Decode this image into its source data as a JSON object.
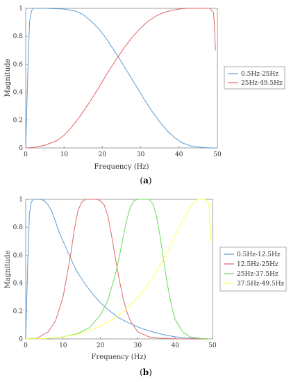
{
  "chart_data": [
    {
      "type": "line",
      "panel": "(a)",
      "caption_open": "(",
      "caption_letter": "a",
      "caption_close": ")",
      "xlabel": "Frequency (Hz)",
      "ylabel": "Magnitude",
      "xlim": [
        0,
        50
      ],
      "ylim": [
        0,
        1
      ],
      "xticks": [
        0,
        10,
        20,
        30,
        40,
        50
      ],
      "yticks": [
        0,
        0.2,
        0.4,
        0.6,
        0.8,
        1
      ],
      "grid": false,
      "legend_position": "right",
      "series": [
        {
          "name": "0.5Hz-25Hz",
          "color": "#5b9bd5",
          "x": [
            0,
            0.5,
            1,
            1.5,
            2,
            3,
            5,
            10,
            13,
            15,
            17,
            19,
            21,
            23,
            25,
            27,
            29,
            31,
            33,
            35,
            37,
            39,
            41,
            43,
            45,
            47,
            49,
            49.5
          ],
          "y": [
            0,
            0.5,
            0.9,
            0.98,
            1.0,
            1.0,
            1.0,
            0.995,
            0.98,
            0.955,
            0.91,
            0.855,
            0.785,
            0.7,
            0.615,
            0.525,
            0.435,
            0.345,
            0.26,
            0.185,
            0.12,
            0.07,
            0.035,
            0.015,
            0.006,
            0.002,
            0.0,
            0.0
          ]
        },
        {
          "name": "25Hz-49.5Hz",
          "color": "#e06666",
          "x": [
            0,
            2,
            5,
            8,
            10,
            12,
            14,
            16,
            18,
            20,
            22,
            24,
            26,
            28,
            30,
            32,
            34,
            36,
            38,
            40,
            42,
            44,
            46,
            48,
            49,
            49.3,
            49.5
          ],
          "y": [
            0.0,
            0.003,
            0.02,
            0.05,
            0.09,
            0.15,
            0.22,
            0.3,
            0.385,
            0.475,
            0.565,
            0.65,
            0.73,
            0.8,
            0.86,
            0.91,
            0.945,
            0.97,
            0.985,
            0.995,
            1.0,
            1.0,
            1.0,
            1.0,
            0.97,
            0.85,
            0.7
          ]
        }
      ]
    },
    {
      "type": "line",
      "panel": "(b)",
      "caption_open": "(",
      "caption_letter": "b",
      "caption_close": ")",
      "xlabel": "Frequency (Hz)",
      "ylabel": "Magnitude",
      "xlim": [
        0,
        50
      ],
      "ylim": [
        0,
        1
      ],
      "xticks": [
        0,
        10,
        20,
        30,
        40,
        50
      ],
      "yticks": [
        0,
        0.2,
        0.4,
        0.6,
        0.8,
        1
      ],
      "grid": false,
      "legend_position": "right",
      "series": [
        {
          "name": "0.5Hz-12.5Hz",
          "color": "#5b9bd5",
          "x": [
            0,
            0.5,
            1,
            1.5,
            2,
            3,
            4,
            5,
            6,
            7,
            8,
            9,
            10,
            11,
            12,
            13,
            14,
            16,
            18,
            20,
            22,
            25,
            28,
            31,
            34,
            37,
            40,
            43,
            46,
            49.5
          ],
          "y": [
            0,
            0.5,
            0.9,
            0.98,
            1.0,
            1.0,
            1.0,
            0.99,
            0.96,
            0.91,
            0.84,
            0.76,
            0.7,
            0.64,
            0.58,
            0.52,
            0.47,
            0.39,
            0.32,
            0.26,
            0.21,
            0.15,
            0.11,
            0.075,
            0.05,
            0.03,
            0.015,
            0.007,
            0.002,
            0.0
          ]
        },
        {
          "name": "12.5Hz-25Hz",
          "color": "#e06666",
          "x": [
            0,
            3,
            6,
            8,
            10,
            12,
            13,
            14,
            15,
            16,
            17,
            18,
            19,
            20,
            21,
            22,
            23,
            24,
            25,
            26,
            27,
            28,
            30,
            33,
            36,
            40,
            45,
            49.5
          ],
          "y": [
            0.0,
            0.005,
            0.05,
            0.13,
            0.3,
            0.6,
            0.78,
            0.92,
            0.98,
            1.0,
            1.0,
            1.0,
            1.0,
            0.99,
            0.96,
            0.88,
            0.74,
            0.58,
            0.43,
            0.3,
            0.2,
            0.13,
            0.05,
            0.015,
            0.005,
            0.001,
            0.0,
            0.0
          ]
        },
        {
          "name": "25Hz-37.5Hz",
          "color": "#66dd55",
          "x": [
            0,
            5,
            10,
            14,
            17,
            20,
            22,
            24,
            25,
            26,
            27,
            28,
            29,
            30,
            31,
            32,
            33,
            34,
            35,
            36,
            37,
            38,
            39,
            40,
            42,
            44,
            47,
            49.5
          ],
          "y": [
            0.0,
            0.002,
            0.015,
            0.04,
            0.08,
            0.17,
            0.28,
            0.46,
            0.58,
            0.72,
            0.85,
            0.94,
            0.99,
            1.0,
            1.0,
            1.0,
            1.0,
            0.97,
            0.88,
            0.73,
            0.55,
            0.38,
            0.24,
            0.14,
            0.05,
            0.015,
            0.003,
            0.0
          ]
        },
        {
          "name": "37.5Hz-49.5Hz",
          "color": "#ffff55",
          "x": [
            0,
            5,
            10,
            15,
            20,
            25,
            28,
            31,
            34,
            36,
            38,
            40,
            42,
            44,
            45,
            46,
            47,
            48,
            49,
            49.3,
            49.5
          ],
          "y": [
            0.0,
            0.003,
            0.015,
            0.04,
            0.09,
            0.17,
            0.24,
            0.33,
            0.44,
            0.53,
            0.63,
            0.74,
            0.85,
            0.94,
            0.98,
            1.0,
            1.0,
            1.0,
            0.97,
            0.85,
            0.7
          ]
        }
      ]
    }
  ]
}
